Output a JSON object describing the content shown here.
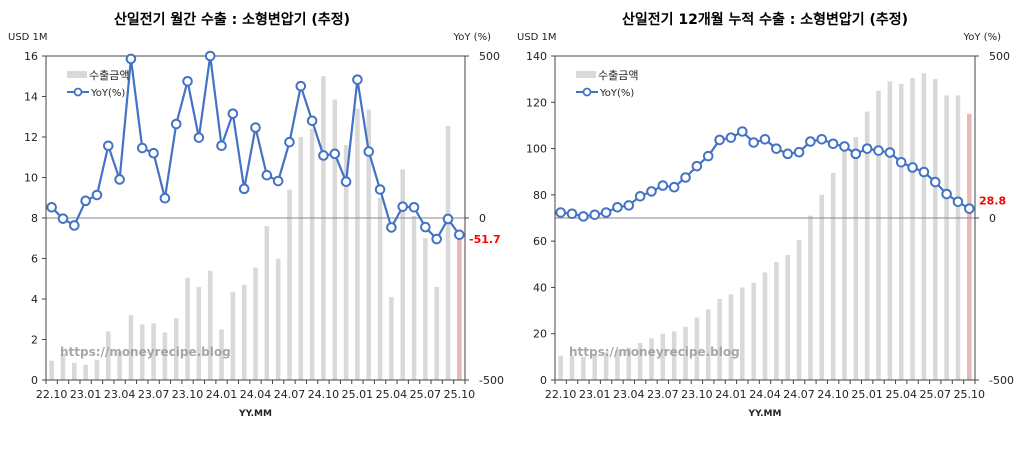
{
  "chart_data": [
    {
      "type": "bar+line",
      "title": "산일전기 월간 수출 : 소형변압기 (추정)",
      "xlabel": "YY.MM",
      "ylabel": "USD 1M",
      "y2label": "YoY (%)",
      "ylim": [
        0,
        16
      ],
      "yticks": [
        0,
        2,
        4,
        6,
        8,
        10,
        12,
        14,
        16
      ],
      "y2lim": [
        -500,
        500
      ],
      "y2ticks": [
        -500,
        0,
        500
      ],
      "xtick_labels": [
        "22.10",
        "23.01",
        "23.04",
        "23.07",
        "23.10",
        "24.01",
        "24.04",
        "24.07",
        "24.10",
        "25.01",
        "25.04",
        "25.07",
        "25.10"
      ],
      "categories": [
        "22.10",
        "22.11",
        "22.12",
        "23.01",
        "23.02",
        "23.03",
        "23.04",
        "23.05",
        "23.06",
        "23.07",
        "23.08",
        "23.09",
        "23.10",
        "23.11",
        "23.12",
        "24.01",
        "24.02",
        "24.03",
        "24.04",
        "24.05",
        "24.06",
        "24.07",
        "24.08",
        "24.09",
        "24.10",
        "24.11",
        "24.12",
        "25.01",
        "25.02",
        "25.03",
        "25.04",
        "25.05",
        "25.06",
        "25.07",
        "25.08",
        "25.09",
        "25.10"
      ],
      "legend_placement": "top-left",
      "series": [
        {
          "name": "수출금액",
          "axis": "left",
          "type": "bar",
          "color": "#d9d9d9",
          "highlight_color": "#e6b8b7",
          "values": [
            0.95,
            1.3,
            0.85,
            0.75,
            1.0,
            2.4,
            1.4,
            3.2,
            2.75,
            2.8,
            2.35,
            3.05,
            5.05,
            4.6,
            5.4,
            2.5,
            4.35,
            4.7,
            5.55,
            7.6,
            6.0,
            9.4,
            12.0,
            12.4,
            15.0,
            13.85,
            11.6,
            13.4,
            13.35,
            9.0,
            4.1,
            10.4,
            8.1,
            7.0,
            4.6,
            12.55,
            7.0
          ]
        },
        {
          "name": "YoY(%)",
          "axis": "right",
          "type": "line",
          "color": "#4472c4",
          "values": [
            33,
            -2,
            -23,
            53,
            71,
            223,
            119,
            491,
            216,
            200,
            61,
            290,
            422,
            248,
            520,
            223,
            322,
            90,
            279,
            132,
            114,
            234,
            407,
            300,
            193,
            198,
            112,
            427,
            205,
            88,
            -29,
            35,
            33,
            -28,
            -65,
            -3,
            -51.7
          ]
        }
      ],
      "annotation": {
        "text": "-51.7",
        "color": "#ff0000"
      },
      "watermark": "https://moneyrecipe.blog",
      "zero_line": true
    },
    {
      "type": "bar+line",
      "title": "산일전기 12개월 누적 수출 : 소형변압기 (추정)",
      "xlabel": "YY.MM",
      "ylabel": "USD 1M",
      "y2label": "YoY (%)",
      "ylim": [
        0,
        140
      ],
      "yticks": [
        0,
        20,
        40,
        60,
        80,
        100,
        120,
        140
      ],
      "y2lim": [
        -500,
        500
      ],
      "y2ticks": [
        -500,
        0,
        500
      ],
      "xtick_labels": [
        "22.10",
        "23.01",
        "23.04",
        "23.07",
        "23.10",
        "24.01",
        "24.04",
        "24.07",
        "24.10",
        "25.01",
        "25.04",
        "25.07",
        "25.10"
      ],
      "categories": [
        "22.10",
        "22.11",
        "22.12",
        "23.01",
        "23.02",
        "23.03",
        "23.04",
        "23.05",
        "23.06",
        "23.07",
        "23.08",
        "23.09",
        "23.10",
        "23.11",
        "23.12",
        "24.01",
        "24.02",
        "24.03",
        "24.04",
        "24.05",
        "24.06",
        "24.07",
        "24.08",
        "24.09",
        "24.10",
        "24.11",
        "24.12",
        "25.01",
        "25.02",
        "25.03",
        "25.04",
        "25.05",
        "25.06",
        "25.07",
        "25.08",
        "25.09",
        "25.10"
      ],
      "legend_placement": "top-left",
      "series": [
        {
          "name": "수출금액",
          "axis": "left",
          "type": "bar",
          "color": "#d9d9d9",
          "highlight_color": "#e6b8b7",
          "values": [
            10.5,
            10.5,
            10,
            11,
            12,
            13,
            14,
            16,
            18,
            20,
            21,
            23,
            27,
            30.5,
            35,
            37,
            40,
            42,
            46.5,
            51,
            54,
            60.5,
            71,
            80,
            89.5,
            100,
            105,
            116,
            125,
            129,
            128,
            130.5,
            132.5,
            130,
            123,
            123,
            115
          ]
        },
        {
          "name": "YoY(%)",
          "axis": "right",
          "type": "line",
          "color": "#4472c4",
          "values": [
            17,
            13,
            5,
            10,
            17,
            33,
            39,
            67,
            82,
            100,
            95,
            125,
            160,
            191,
            241,
            248,
            267,
            233,
            243,
            214,
            198,
            203,
            236,
            243,
            229,
            221,
            198,
            214,
            208,
            202,
            172,
            156,
            142,
            111,
            74,
            50,
            28.8
          ]
        }
      ],
      "annotation": {
        "text": "28.8",
        "color": "#ff0000"
      },
      "watermark": "https://moneyrecipe.blog",
      "zero_line": true
    }
  ]
}
